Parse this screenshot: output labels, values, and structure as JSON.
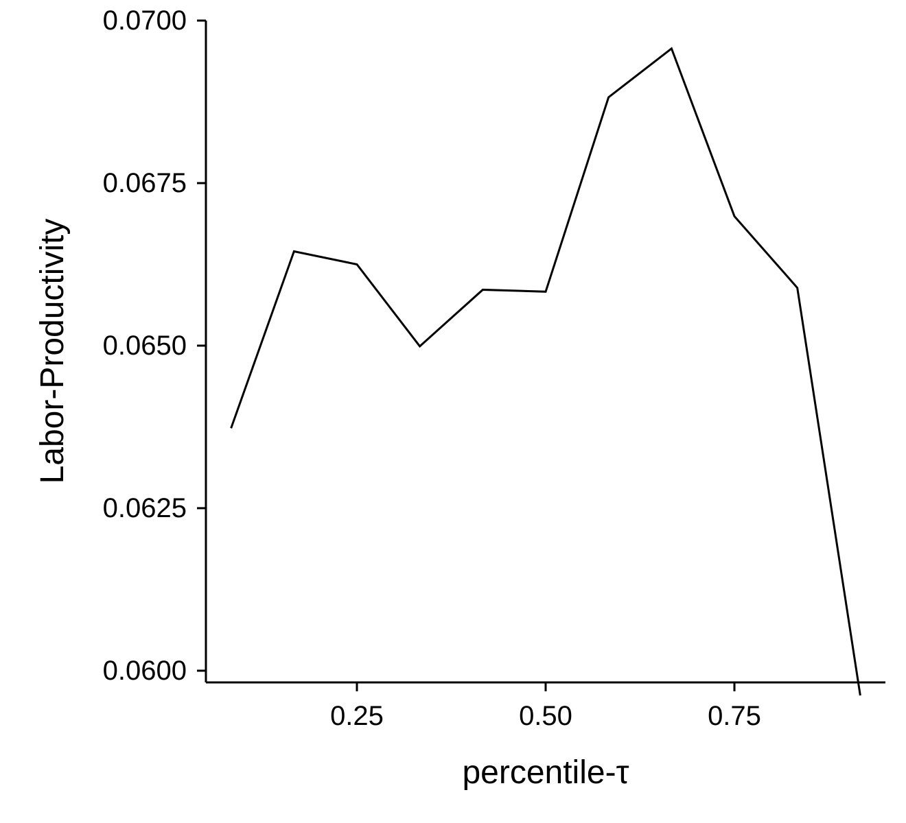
{
  "chart_data": {
    "type": "line",
    "xlabel": "percentile-τ",
    "ylabel": "Labor-Productivity",
    "xlim": [
      0.05,
      0.95
    ],
    "ylim": [
      0.05982,
      0.07
    ],
    "x_ticks": [
      {
        "value": 0.25,
        "label": "0.25"
      },
      {
        "value": 0.5,
        "label": "0.50"
      },
      {
        "value": 0.75,
        "label": "0.75"
      }
    ],
    "y_ticks": [
      {
        "value": 0.06,
        "label": "0.0600"
      },
      {
        "value": 0.0625,
        "label": "0.0625"
      },
      {
        "value": 0.065,
        "label": "0.0650"
      },
      {
        "value": 0.0675,
        "label": "0.0675"
      },
      {
        "value": 0.07,
        "label": "0.0700"
      }
    ],
    "grid": false,
    "legend": "none",
    "series": [
      {
        "color": "#000000",
        "x": [
          0.0833,
          0.1667,
          0.25,
          0.3333,
          0.4167,
          0.5,
          0.5833,
          0.6667,
          0.75,
          0.8333,
          0.9167
        ],
        "y": [
          0.06373,
          0.06645,
          0.06625,
          0.06499,
          0.06586,
          0.06583,
          0.06882,
          0.06957,
          0.06699,
          0.06589,
          0.05962
        ]
      }
    ]
  }
}
